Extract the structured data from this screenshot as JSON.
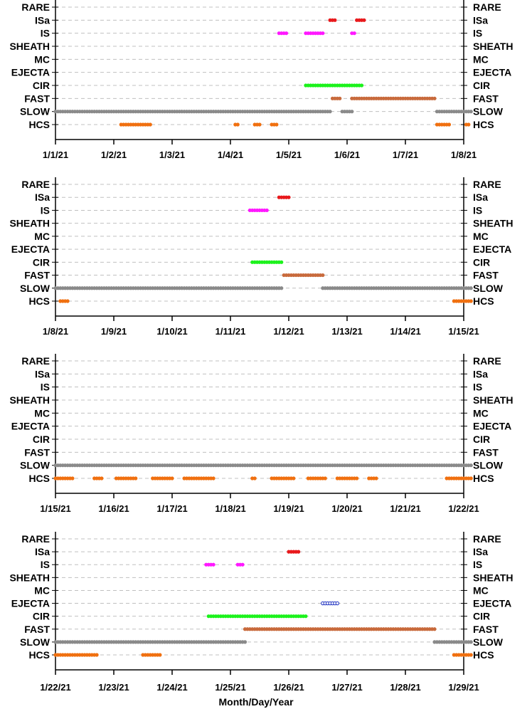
{
  "chart_data": {
    "type": "scatter",
    "xlabel": "Month/Day/Year",
    "categories": [
      "RARE",
      "ISa",
      "IS",
      "SHEATH",
      "MC",
      "EJECTA",
      "CIR",
      "FAST",
      "SLOW",
      "HCS"
    ],
    "colors": {
      "ISa": "#e8191c",
      "IS": "#ff18ff",
      "EJECTA": "#1c2fc0",
      "CIR": "#1cf21c",
      "FAST": "#c86a3c",
      "SLOW": "#8a8a8a",
      "HCS": "#f07010"
    },
    "panels": [
      {
        "xlim": [
          "1/1/21",
          "1/8/21"
        ],
        "xticks": [
          "1/1/21",
          "1/2/21",
          "1/3/21",
          "1/4/21",
          "1/5/21",
          "1/6/21",
          "1/7/21",
          "1/8/21"
        ],
        "series": [
          {
            "category": "SLOW",
            "segments": [
              [
                "1/1/21 00:00",
                "1/5/21 17:00"
              ],
              [
                "1/5/21 22:00",
                "1/6/21 02:00"
              ],
              [
                "1/7/21 13:00",
                "1/8/21 03:00"
              ]
            ]
          },
          {
            "category": "HCS",
            "segments": [
              [
                "1/2/21 03:00",
                "1/2/21 15:00"
              ],
              [
                "1/4/21 02:00",
                "1/4/21 03:00"
              ],
              [
                "1/4/21 10:00",
                "1/4/21 12:00"
              ],
              [
                "1/4/21 17:00",
                "1/4/21 19:00"
              ],
              [
                "1/7/21 13:00",
                "1/7/21 18:00"
              ],
              [
                "1/8/21 01:00",
                "1/8/21 02:00"
              ]
            ]
          },
          {
            "category": "FAST",
            "segments": [
              [
                "1/5/21 18:00",
                "1/5/21 21:00"
              ],
              [
                "1/6/21 02:00",
                "1/7/21 12:00"
              ]
            ]
          },
          {
            "category": "CIR",
            "segments": [
              [
                "1/5/21 07:00",
                "1/6/21 06:00"
              ]
            ]
          },
          {
            "category": "IS",
            "segments": [
              [
                "1/4/21 20:00",
                "1/4/21 23:00"
              ],
              [
                "1/5/21 07:00",
                "1/5/21 14:00"
              ],
              [
                "1/6/21 02:00",
                "1/6/21 03:00"
              ]
            ]
          },
          {
            "category": "ISa",
            "segments": [
              [
                "1/5/21 17:00",
                "1/5/21 19:00"
              ],
              [
                "1/6/21 04:00",
                "1/6/21 07:00"
              ]
            ]
          }
        ]
      },
      {
        "xlim": [
          "1/8/21",
          "1/15/21"
        ],
        "xticks": [
          "1/8/21",
          "1/9/21",
          "1/10/21",
          "1/11/21",
          "1/12/21",
          "1/13/21",
          "1/14/21",
          "1/15/21"
        ],
        "series": [
          {
            "category": "SLOW",
            "segments": [
              [
                "1/8/21 00:00",
                "1/11/21 21:00"
              ],
              [
                "1/12/21 14:00",
                "1/15/21 03:00"
              ]
            ]
          },
          {
            "category": "HCS",
            "segments": [
              [
                "1/8/21 02:00",
                "1/8/21 05:00"
              ],
              [
                "1/14/21 20:00",
                "1/15/21 03:00"
              ]
            ]
          },
          {
            "category": "FAST",
            "segments": [
              [
                "1/11/21 22:00",
                "1/12/21 14:00"
              ]
            ]
          },
          {
            "category": "CIR",
            "segments": [
              [
                "1/11/21 09:00",
                "1/11/21 21:00"
              ]
            ]
          },
          {
            "category": "IS",
            "segments": [
              [
                "1/11/21 08:00",
                "1/11/21 15:00"
              ]
            ]
          },
          {
            "category": "ISa",
            "segments": [
              [
                "1/11/21 20:00",
                "1/12/21 00:00"
              ]
            ]
          }
        ]
      },
      {
        "xlim": [
          "1/15/21",
          "1/22/21"
        ],
        "xticks": [
          "1/15/21",
          "1/16/21",
          "1/17/21",
          "1/18/21",
          "1/19/21",
          "1/20/21",
          "1/21/21",
          "1/22/21"
        ],
        "series": [
          {
            "category": "SLOW",
            "segments": [
              [
                "1/15/21 00:00",
                "1/22/21 03:00"
              ]
            ]
          },
          {
            "category": "HCS",
            "segments": [
              [
                "1/15/21 00:00",
                "1/15/21 07:00"
              ],
              [
                "1/15/21 16:00",
                "1/15/21 19:00"
              ],
              [
                "1/16/21 01:00",
                "1/16/21 09:00"
              ],
              [
                "1/16/21 16:00",
                "1/17/21 00:00"
              ],
              [
                "1/17/21 05:00",
                "1/17/21 17:00"
              ],
              [
                "1/18/21 09:00",
                "1/18/21 10:00"
              ],
              [
                "1/18/21 17:00",
                "1/19/21 02:00"
              ],
              [
                "1/19/21 08:00",
                "1/19/21 15:00"
              ],
              [
                "1/19/21 20:00",
                "1/20/21 04:00"
              ],
              [
                "1/20/21 09:00",
                "1/20/21 12:00"
              ],
              [
                "1/21/21 17:00",
                "1/22/21 03:00"
              ]
            ]
          }
        ]
      },
      {
        "xlim": [
          "1/22/21",
          "1/29/21"
        ],
        "xticks": [
          "1/22/21",
          "1/23/21",
          "1/24/21",
          "1/25/21",
          "1/26/21",
          "1/27/21",
          "1/28/21",
          "1/29/21"
        ],
        "series": [
          {
            "category": "SLOW",
            "segments": [
              [
                "1/22/21 00:00",
                "1/25/21 06:00"
              ],
              [
                "1/28/21 12:00",
                "1/29/21 03:00"
              ]
            ]
          },
          {
            "category": "HCS",
            "segments": [
              [
                "1/22/21 00:00",
                "1/22/21 17:00"
              ],
              [
                "1/23/21 12:00",
                "1/23/21 19:00"
              ],
              [
                "1/28/21 20:00",
                "1/29/21 03:00"
              ]
            ]
          },
          {
            "category": "FAST",
            "segments": [
              [
                "1/25/21 06:00",
                "1/28/21 12:00"
              ]
            ]
          },
          {
            "category": "CIR",
            "segments": [
              [
                "1/24/21 15:00",
                "1/26/21 07:00"
              ]
            ]
          },
          {
            "category": "EJECTA",
            "segments": [
              [
                "1/26/21 14:00",
                "1/26/21 20:00"
              ]
            ]
          },
          {
            "category": "IS",
            "segments": [
              [
                "1/24/21 14:00",
                "1/24/21 17:00"
              ],
              [
                "1/25/21 03:00",
                "1/25/21 05:00"
              ]
            ]
          },
          {
            "category": "ISa",
            "segments": [
              [
                "1/26/21 00:00",
                "1/26/21 04:00"
              ]
            ]
          }
        ]
      }
    ]
  }
}
